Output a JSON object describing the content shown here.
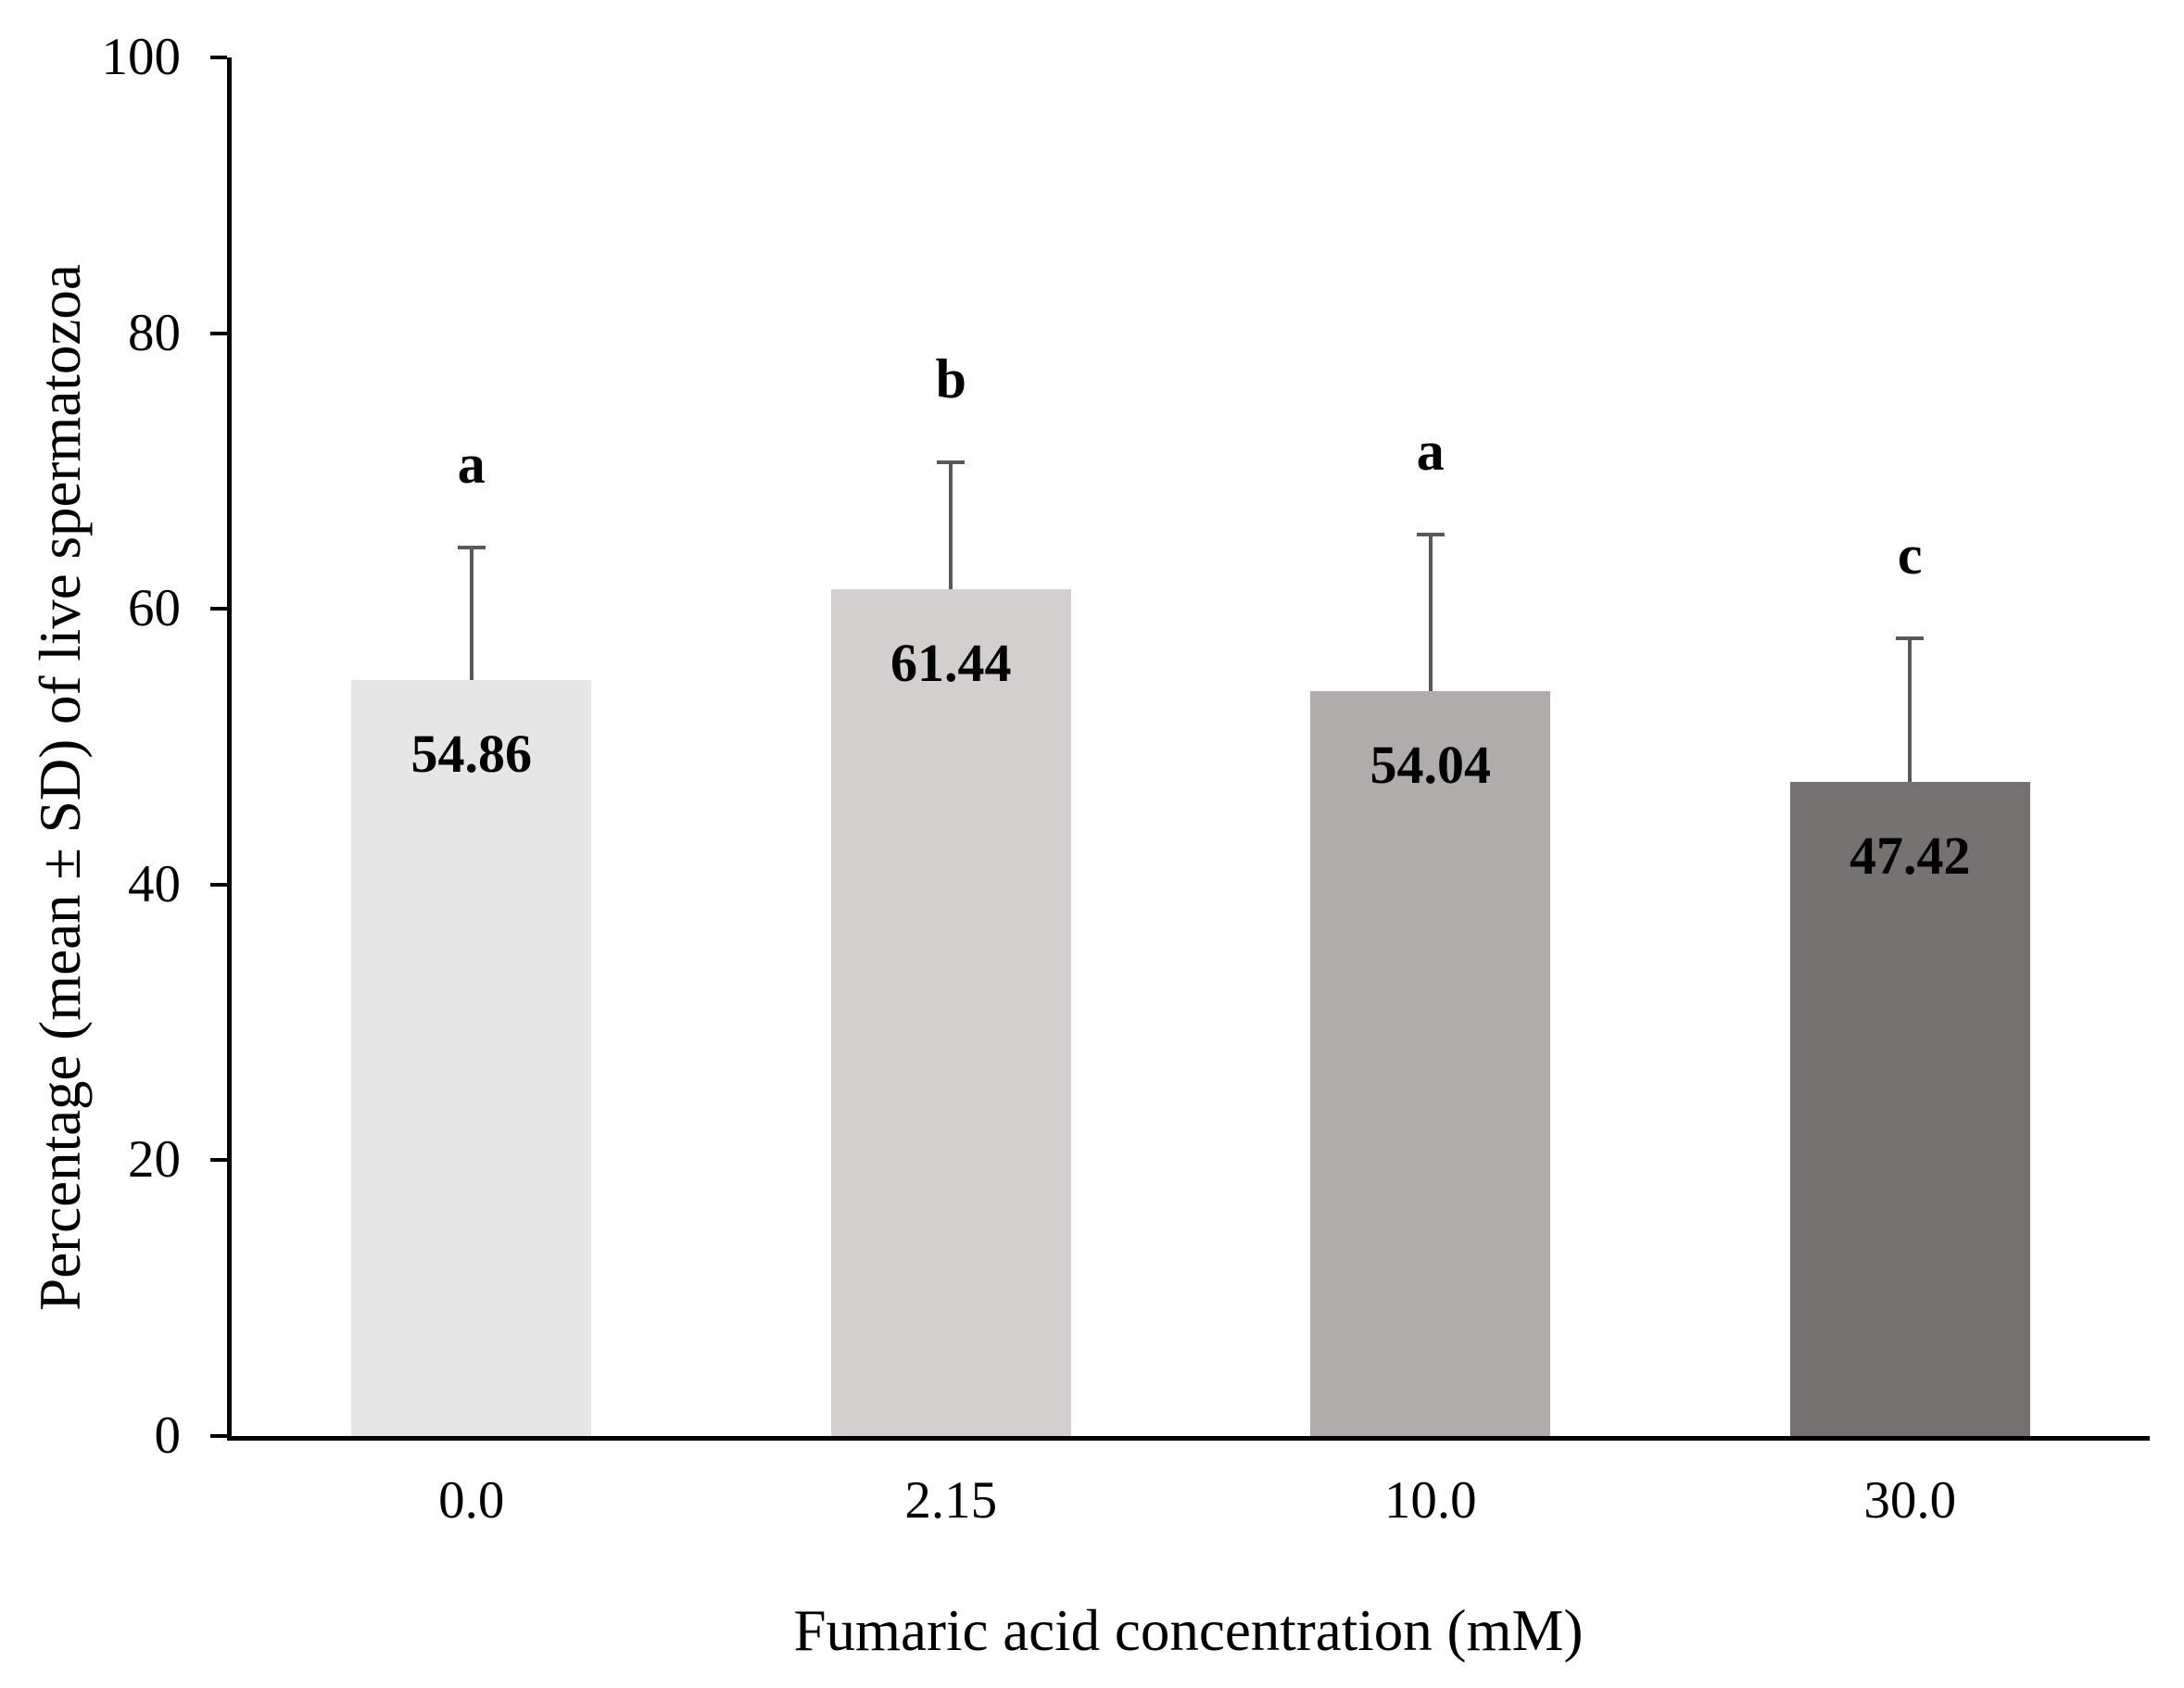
{
  "chart_data": {
    "type": "bar",
    "title": "",
    "ylabel": "Percentage (mean ± SD) of live spermatozoa",
    "xlabel": "Fumaric acid concentration (mM)",
    "ylim": [
      0,
      100
    ],
    "yticks": [
      0,
      20,
      40,
      60,
      80,
      100
    ],
    "grid": false,
    "legend": false,
    "categories": [
      "0.0",
      "2.15",
      "10.0",
      "30.0"
    ],
    "values": [
      54.86,
      61.44,
      54.04,
      47.42
    ],
    "value_labels": [
      "54.86",
      "61.44",
      "54.04",
      "47.42"
    ],
    "sd_upper": [
      9.7,
      9.3,
      11.5,
      10.6
    ],
    "sig_letters": [
      "a",
      "b",
      "a",
      "c"
    ],
    "bar_colors": [
      "#e6e6e6",
      "#d2cfce",
      "#b0acab",
      "#757170"
    ],
    "error_bar_color": "#595959",
    "axis_color": "#000000",
    "bar_width_frac": 0.5
  }
}
